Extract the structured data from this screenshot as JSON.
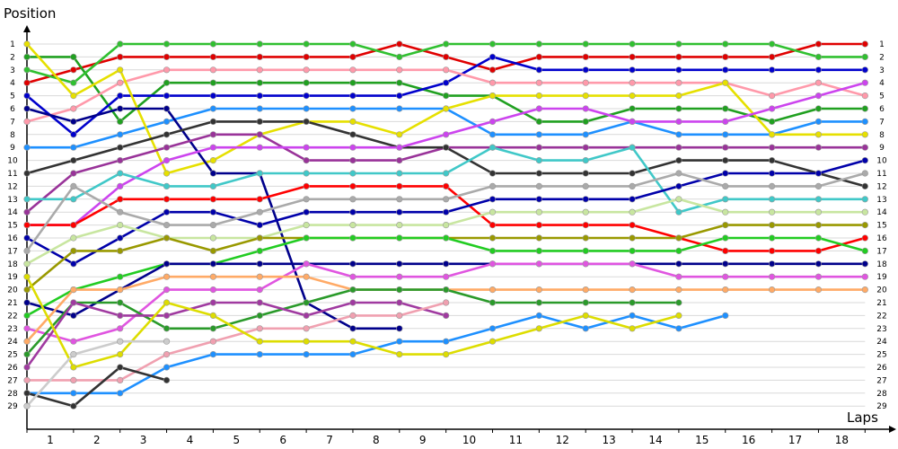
{
  "chart_data": {
    "type": "line",
    "title": "",
    "xlabel": "Laps",
    "ylabel": "Position",
    "x_ticks": [
      "1",
      "2",
      "3",
      "4",
      "5",
      "6",
      "7",
      "8",
      "9",
      "10",
      "11",
      "12",
      "13",
      "14",
      "15",
      "16",
      "17",
      "18"
    ],
    "y_ticks": [
      "1",
      "2",
      "3",
      "4",
      "5",
      "6",
      "7",
      "8",
      "9",
      "10",
      "11",
      "12",
      "13",
      "14",
      "15",
      "16",
      "17",
      "18",
      "19",
      "20",
      "21",
      "22",
      "23",
      "24",
      "25",
      "26",
      "27",
      "28",
      "29"
    ],
    "x": [
      0,
      1,
      2,
      3,
      4,
      5,
      6,
      7,
      8,
      9,
      10,
      11,
      12,
      13,
      14,
      15,
      16,
      17,
      18
    ],
    "ylim": [
      29,
      1
    ],
    "grid": true,
    "series": [
      {
        "color": "#e00000",
        "values": [
          4,
          3,
          2,
          2,
          2,
          2,
          2,
          2,
          1,
          2,
          3,
          2,
          2,
          2,
          2,
          2,
          2,
          1,
          1
        ]
      },
      {
        "color": "#20a020",
        "values": [
          2,
          2,
          7,
          4,
          4,
          4,
          4,
          4,
          4,
          5,
          5,
          7,
          7,
          6,
          6,
          6,
          7,
          6,
          6
        ]
      },
      {
        "color": "#30c030",
        "values": [
          3,
          4,
          1,
          1,
          1,
          1,
          1,
          1,
          2,
          1,
          1,
          1,
          1,
          1,
          1,
          1,
          1,
          2,
          2
        ]
      },
      {
        "color": "#0000cc",
        "values": [
          5,
          8,
          5,
          5,
          5,
          5,
          5,
          5,
          5,
          4,
          2,
          3,
          3,
          3,
          3,
          3,
          3,
          3,
          3
        ]
      },
      {
        "color": "#ff99aa",
        "values": [
          7,
          6,
          4,
          3,
          3,
          3,
          3,
          3,
          3,
          3,
          4,
          4,
          4,
          4,
          4,
          4,
          5,
          4,
          5
        ]
      },
      {
        "color": "#1e90ff",
        "values": [
          9,
          9,
          8,
          7,
          6,
          6,
          6,
          6,
          6,
          6,
          8,
          8,
          8,
          7,
          8,
          8,
          8,
          7,
          7
        ]
      },
      {
        "color": "#e6e000",
        "values": [
          1,
          5,
          3,
          11,
          10,
          8,
          7,
          7,
          8,
          6,
          5,
          5,
          5,
          5,
          5,
          4,
          8,
          8,
          8
        ]
      },
      {
        "color": "#00008b",
        "values": [
          6,
          7,
          6,
          6,
          11,
          11,
          21,
          23,
          23,
          null,
          null,
          null,
          null,
          null,
          null,
          null,
          null,
          null,
          null
        ]
      },
      {
        "color": "#993399",
        "values": [
          14,
          11,
          10,
          9,
          8,
          8,
          10,
          10,
          10,
          9,
          9,
          9,
          9,
          9,
          9,
          9,
          9,
          9,
          9
        ]
      },
      {
        "color": "#333333",
        "values": [
          11,
          10,
          9,
          8,
          7,
          7,
          7,
          8,
          9,
          9,
          11,
          11,
          11,
          11,
          10,
          10,
          10,
          11,
          12
        ]
      },
      {
        "color": "#cc44ee",
        "values": [
          15,
          15,
          12,
          10,
          9,
          9,
          9,
          9,
          9,
          8,
          7,
          6,
          6,
          7,
          7,
          7,
          6,
          5,
          4
        ]
      },
      {
        "color": "#40c8c8",
        "values": [
          13,
          13,
          11,
          12,
          12,
          11,
          11,
          11,
          11,
          11,
          9,
          10,
          10,
          9,
          14,
          13,
          13,
          13,
          13
        ]
      },
      {
        "color": "#ff0000",
        "values": [
          15,
          15,
          13,
          13,
          13,
          13,
          12,
          12,
          12,
          12,
          15,
          15,
          15,
          15,
          16,
          17,
          17,
          17,
          16
        ]
      },
      {
        "color": "#0000aa",
        "values": [
          16,
          18,
          16,
          14,
          14,
          15,
          14,
          14,
          14,
          14,
          13,
          13,
          13,
          13,
          12,
          11,
          11,
          11,
          10
        ]
      },
      {
        "color": "#aaaaaa",
        "values": [
          17,
          12,
          14,
          15,
          15,
          14,
          13,
          13,
          13,
          13,
          12,
          12,
          12,
          12,
          11,
          12,
          12,
          12,
          11
        ]
      },
      {
        "color": "#c8e6a0",
        "values": [
          18,
          16,
          15,
          16,
          16,
          16,
          15,
          15,
          15,
          15,
          14,
          14,
          14,
          14,
          13,
          14,
          14,
          14,
          14
        ]
      },
      {
        "color": "#999900",
        "values": [
          20,
          17,
          17,
          16,
          17,
          16,
          16,
          16,
          16,
          16,
          16,
          16,
          16,
          16,
          16,
          15,
          15,
          15,
          15
        ]
      },
      {
        "color": "#22cc22",
        "values": [
          22,
          20,
          19,
          18,
          18,
          17,
          16,
          16,
          16,
          16,
          17,
          17,
          17,
          17,
          17,
          16,
          16,
          16,
          17
        ]
      },
      {
        "color": "#00008b",
        "values": [
          21,
          22,
          20,
          18,
          18,
          18,
          18,
          18,
          18,
          18,
          18,
          18,
          18,
          18,
          18,
          18,
          18,
          18,
          18
        ]
      },
      {
        "color": "#e055e0",
        "values": [
          23,
          24,
          23,
          20,
          20,
          20,
          18,
          19,
          19,
          19,
          18,
          18,
          18,
          18,
          19,
          19,
          19,
          19,
          19
        ]
      },
      {
        "color": "#ffaa66",
        "values": [
          24,
          20,
          20,
          19,
          19,
          19,
          19,
          20,
          20,
          20,
          20,
          20,
          20,
          20,
          20,
          20,
          20,
          20,
          20
        ]
      },
      {
        "color": "#2a9a2a",
        "values": [
          25,
          21,
          21,
          23,
          23,
          22,
          21,
          20,
          20,
          20,
          21,
          21,
          21,
          21,
          21,
          null,
          null,
          null,
          null
        ]
      },
      {
        "color": "#a03aa0",
        "values": [
          26,
          21,
          22,
          22,
          21,
          21,
          22,
          21,
          21,
          22,
          null,
          null,
          null,
          null,
          null,
          null,
          null,
          null,
          null
        ]
      },
      {
        "color": "#f0a0b0",
        "values": [
          27,
          27,
          27,
          25,
          24,
          23,
          23,
          22,
          22,
          21,
          null,
          null,
          null,
          null,
          null,
          null,
          null,
          null,
          null
        ]
      },
      {
        "color": "#1e90ff",
        "values": [
          28,
          28,
          28,
          26,
          25,
          25,
          25,
          25,
          24,
          24,
          23,
          22,
          23,
          22,
          23,
          22,
          null,
          null,
          null
        ]
      },
      {
        "color": "#dddd00",
        "values": [
          19,
          26,
          25,
          21,
          22,
          24,
          24,
          24,
          25,
          25,
          24,
          23,
          22,
          23,
          22,
          null,
          null,
          null,
          null
        ]
      },
      {
        "color": "#333333",
        "values": [
          28,
          29,
          26,
          27,
          null,
          null,
          null,
          null,
          null,
          null,
          null,
          null,
          null,
          null,
          null,
          null,
          null,
          null,
          null
        ]
      },
      {
        "color": "#cccccc",
        "values": [
          29,
          25,
          24,
          24,
          null,
          null,
          null,
          null,
          null,
          null,
          null,
          null,
          null,
          null,
          null,
          null,
          null,
          null,
          null
        ]
      }
    ]
  }
}
